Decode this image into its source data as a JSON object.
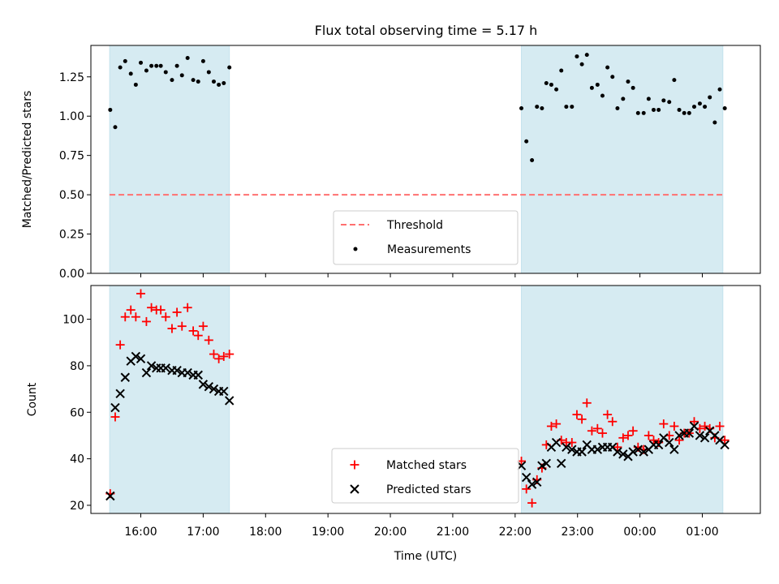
{
  "chart_data": [
    {
      "type": "scatter",
      "title": "Flux total observing time = 5.17 h",
      "xlabel": "",
      "ylabel": "Matched/Predicted stars",
      "xlim": [
        15.2,
        25.93
      ],
      "ylim": [
        0.0,
        1.45
      ],
      "yticks": [
        0.0,
        0.25,
        0.5,
        0.75,
        1.0,
        1.25
      ],
      "ytick_labels": [
        "0.00",
        "0.25",
        "0.50",
        "0.75",
        "1.00",
        "1.25"
      ],
      "shaded_intervals": [
        [
          15.5,
          17.42
        ],
        [
          22.1,
          25.33
        ]
      ],
      "threshold": {
        "name": "Threshold",
        "value": 0.5,
        "color": "#ff7070"
      },
      "legend": {
        "position": "lower-center",
        "entries": [
          "Threshold",
          "Measurements"
        ]
      },
      "series": [
        {
          "name": "Measurements",
          "marker": "dot",
          "color": "#000000",
          "x": [
            15.51,
            15.59,
            15.67,
            15.75,
            15.84,
            15.92,
            16.0,
            16.09,
            16.17,
            16.25,
            16.32,
            16.4,
            16.5,
            16.58,
            16.66,
            16.75,
            16.84,
            16.92,
            17.0,
            17.09,
            17.17,
            17.25,
            17.33,
            17.42,
            22.1,
            22.18,
            22.27,
            22.35,
            22.43,
            22.5,
            22.58,
            22.66,
            22.74,
            22.82,
            22.91,
            22.99,
            23.07,
            23.15,
            23.23,
            23.32,
            23.4,
            23.48,
            23.56,
            23.64,
            23.73,
            23.81,
            23.89,
            23.97,
            24.06,
            24.14,
            24.22,
            24.3,
            24.38,
            24.47,
            24.55,
            24.63,
            24.71,
            24.79,
            24.87,
            24.96,
            25.04,
            25.12,
            25.2,
            25.28,
            25.36
          ],
          "y": [
            1.04,
            0.93,
            1.31,
            1.35,
            1.27,
            1.2,
            1.34,
            1.29,
            1.32,
            1.32,
            1.32,
            1.28,
            1.23,
            1.32,
            1.26,
            1.37,
            1.23,
            1.22,
            1.35,
            1.28,
            1.22,
            1.2,
            1.21,
            1.31,
            1.05,
            0.84,
            0.72,
            1.06,
            1.05,
            1.21,
            1.2,
            1.17,
            1.29,
            1.06,
            1.06,
            1.38,
            1.33,
            1.39,
            1.18,
            1.2,
            1.13,
            1.31,
            1.25,
            1.05,
            1.11,
            1.22,
            1.18,
            1.02,
            1.02,
            1.11,
            1.04,
            1.04,
            1.1,
            1.09,
            1.23,
            1.04,
            1.02,
            1.02,
            1.06,
            1.08,
            1.06,
            1.12,
            0.96,
            1.17,
            1.05
          ]
        }
      ]
    },
    {
      "type": "scatter",
      "title": "",
      "xlabel": "Time (UTC)",
      "ylabel": "Count",
      "xlim": [
        15.2,
        25.93
      ],
      "ylim": [
        16.5,
        114.5
      ],
      "yticks": [
        20,
        40,
        60,
        80,
        100
      ],
      "ytick_labels": [
        "20",
        "40",
        "60",
        "80",
        "100"
      ],
      "xticks": [
        16,
        17,
        18,
        19,
        20,
        21,
        22,
        23,
        24,
        25
      ],
      "xtick_labels": [
        "16:00",
        "17:00",
        "18:00",
        "19:00",
        "20:00",
        "21:00",
        "22:00",
        "23:00",
        "00:00",
        "01:00"
      ],
      "shaded_intervals": [
        [
          15.5,
          17.42
        ],
        [
          22.1,
          25.33
        ]
      ],
      "legend": {
        "position": "lower-center",
        "entries": [
          "Matched stars",
          "Predicted stars"
        ]
      },
      "x": [
        15.51,
        15.59,
        15.67,
        15.75,
        15.84,
        15.92,
        16.0,
        16.09,
        16.17,
        16.25,
        16.32,
        16.4,
        16.5,
        16.58,
        16.66,
        16.75,
        16.84,
        16.92,
        17.0,
        17.09,
        17.17,
        17.25,
        17.33,
        17.42,
        22.1,
        22.18,
        22.27,
        22.35,
        22.43,
        22.5,
        22.58,
        22.66,
        22.74,
        22.82,
        22.91,
        22.99,
        23.07,
        23.15,
        23.23,
        23.32,
        23.4,
        23.48,
        23.56,
        23.64,
        23.73,
        23.81,
        23.89,
        23.97,
        24.06,
        24.14,
        24.22,
        24.3,
        24.38,
        24.47,
        24.55,
        24.63,
        24.71,
        24.79,
        24.87,
        24.96,
        25.04,
        25.12,
        25.2,
        25.28,
        25.36
      ],
      "series": [
        {
          "name": "Matched stars",
          "marker": "plus",
          "color": "#ff0000",
          "values": [
            25,
            58,
            89,
            101,
            104,
            101,
            111,
            99,
            105,
            104,
            104,
            101,
            96,
            103,
            97,
            105,
            95,
            93,
            97,
            91,
            85,
            83,
            84,
            85,
            39,
            27,
            21,
            31,
            36,
            46,
            54,
            55,
            48,
            47,
            47,
            59,
            57,
            64,
            52,
            53,
            51,
            59,
            56,
            45,
            49,
            50,
            52,
            45,
            44,
            50,
            48,
            47,
            55,
            50,
            54,
            48,
            51,
            51,
            56,
            53,
            54,
            53,
            49,
            54,
            48
          ]
        },
        {
          "name": "Predicted stars",
          "marker": "x",
          "color": "#000000",
          "values": [
            24,
            62,
            68,
            75,
            82,
            84,
            83,
            77,
            80,
            79,
            79,
            79,
            78,
            78,
            77,
            77,
            76,
            76,
            72,
            71,
            70,
            69,
            69,
            65,
            37,
            32,
            29,
            30,
            37,
            38,
            45,
            47,
            38,
            45,
            44,
            43,
            43,
            46,
            44,
            44,
            45,
            45,
            45,
            43,
            42,
            41,
            43,
            44,
            43,
            44,
            46,
            46,
            49,
            47,
            44,
            50,
            51,
            51,
            54,
            50,
            49,
            52,
            50,
            48,
            46
          ]
        }
      ]
    }
  ]
}
